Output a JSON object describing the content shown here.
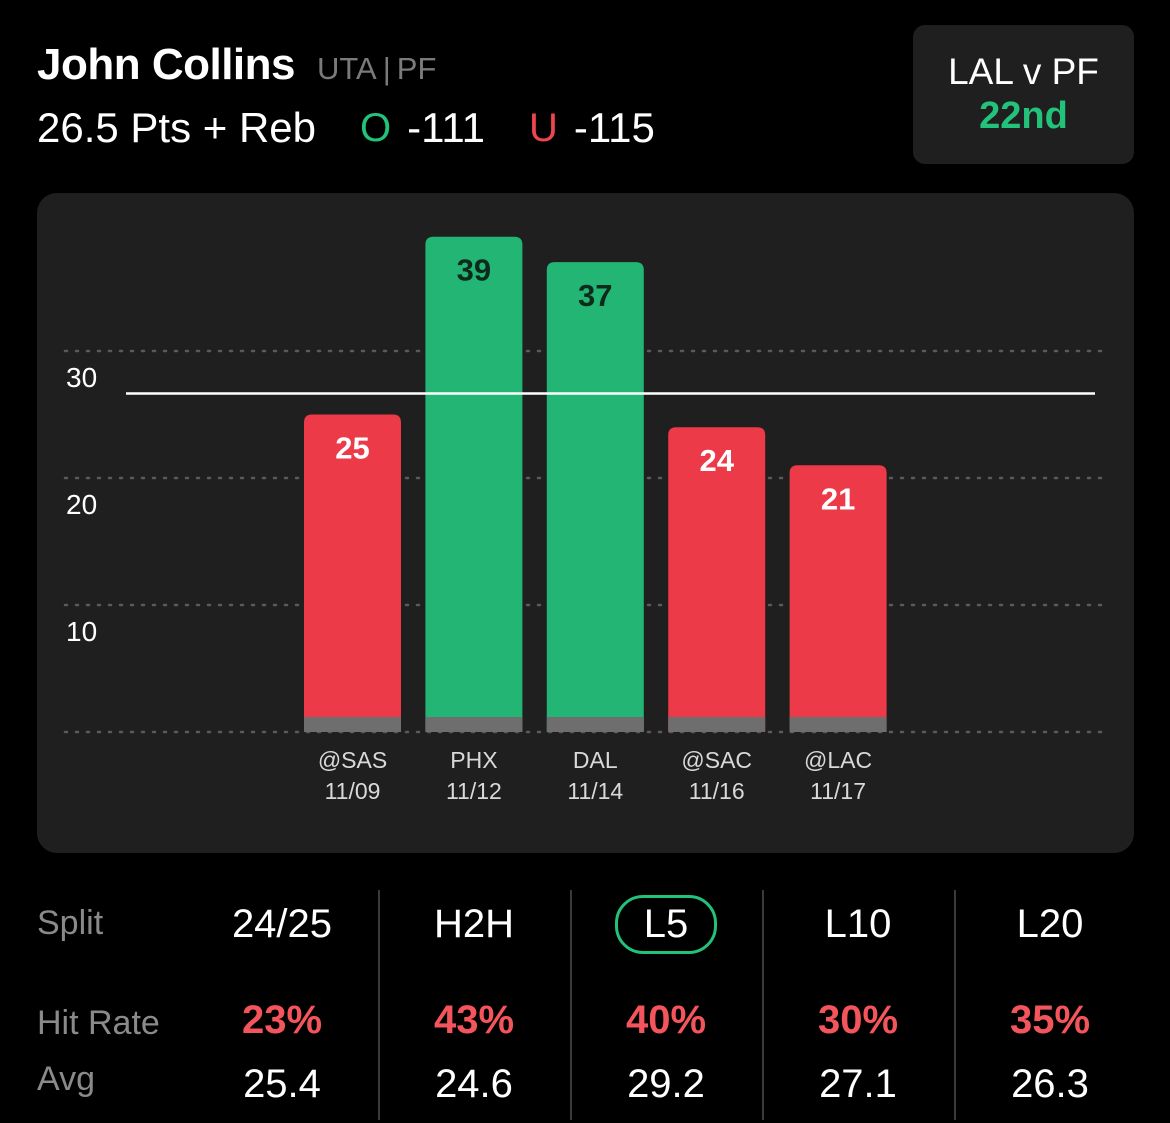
{
  "player": {
    "name": "John Collins",
    "team": "UTA",
    "position": "PF",
    "line": "26.5 Pts + Reb",
    "over_mark": "O",
    "over_odds": "-111",
    "under_mark": "U",
    "under_odds": "-115"
  },
  "matchup": {
    "label": "LAL v PF",
    "rank": "22nd"
  },
  "chart_data": {
    "type": "bar",
    "categories": [
      "@SAS 11/09",
      "PHX 11/12",
      "DAL 11/14",
      "@SAC 11/16",
      "@LAC 11/17"
    ],
    "opponents": [
      "@SAS",
      "PHX",
      "DAL",
      "@SAC",
      "@LAC"
    ],
    "dates": [
      "11/09",
      "11/12",
      "11/14",
      "11/16",
      "11/17"
    ],
    "values": [
      25,
      39,
      37,
      24,
      21
    ],
    "line_value": 26.5,
    "y_ticks": [
      10,
      20,
      30
    ],
    "ylim": [
      0,
      42
    ],
    "grid": true,
    "colors": {
      "over": "#22b574",
      "under": "#ec3a48",
      "base": "#6e6e6e",
      "line": "#ffffff"
    }
  },
  "splits": {
    "row_labels": {
      "split": "Split",
      "hit_rate": "Hit Rate",
      "avg": "Avg"
    },
    "columns": [
      {
        "label": "24/25",
        "hit_rate": "23%",
        "avg": "25.4",
        "selected": false
      },
      {
        "label": "H2H",
        "hit_rate": "43%",
        "avg": "24.6",
        "selected": false
      },
      {
        "label": "L5",
        "hit_rate": "40%",
        "avg": "29.2",
        "selected": true
      },
      {
        "label": "L10",
        "hit_rate": "30%",
        "avg": "27.1",
        "selected": false
      },
      {
        "label": "L20",
        "hit_rate": "35%",
        "avg": "26.3",
        "selected": false
      }
    ]
  }
}
